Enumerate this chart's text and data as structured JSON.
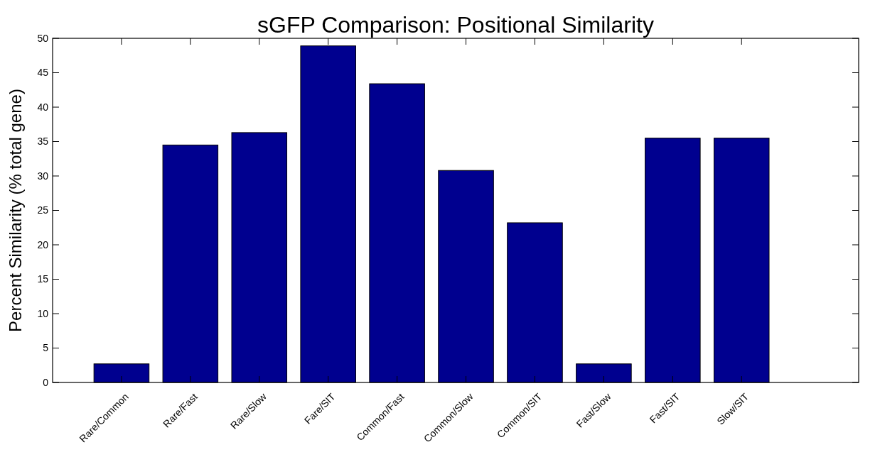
{
  "chart_data": {
    "type": "bar",
    "title": "sGFP Comparison: Positional Similarity",
    "ylabel": "Percent Similarity (% total gene)",
    "categories": [
      "Rare/Common",
      "Rare/Fast",
      "Rare/Slow",
      "Fare/SIT",
      "Common/Fast",
      "Common/Slow",
      "Common/SIT",
      "Fast/Slow",
      "Fast/SIT",
      "Slow/SIT"
    ],
    "values": [
      2.7,
      34.5,
      36.3,
      48.9,
      43.4,
      30.8,
      23.2,
      2.7,
      35.5,
      35.5
    ],
    "color": "#00008f",
    "ylim": [
      0,
      50
    ],
    "yticks": [
      0,
      5,
      10,
      15,
      20,
      25,
      30,
      35,
      40,
      45,
      50
    ],
    "grid": false
  }
}
